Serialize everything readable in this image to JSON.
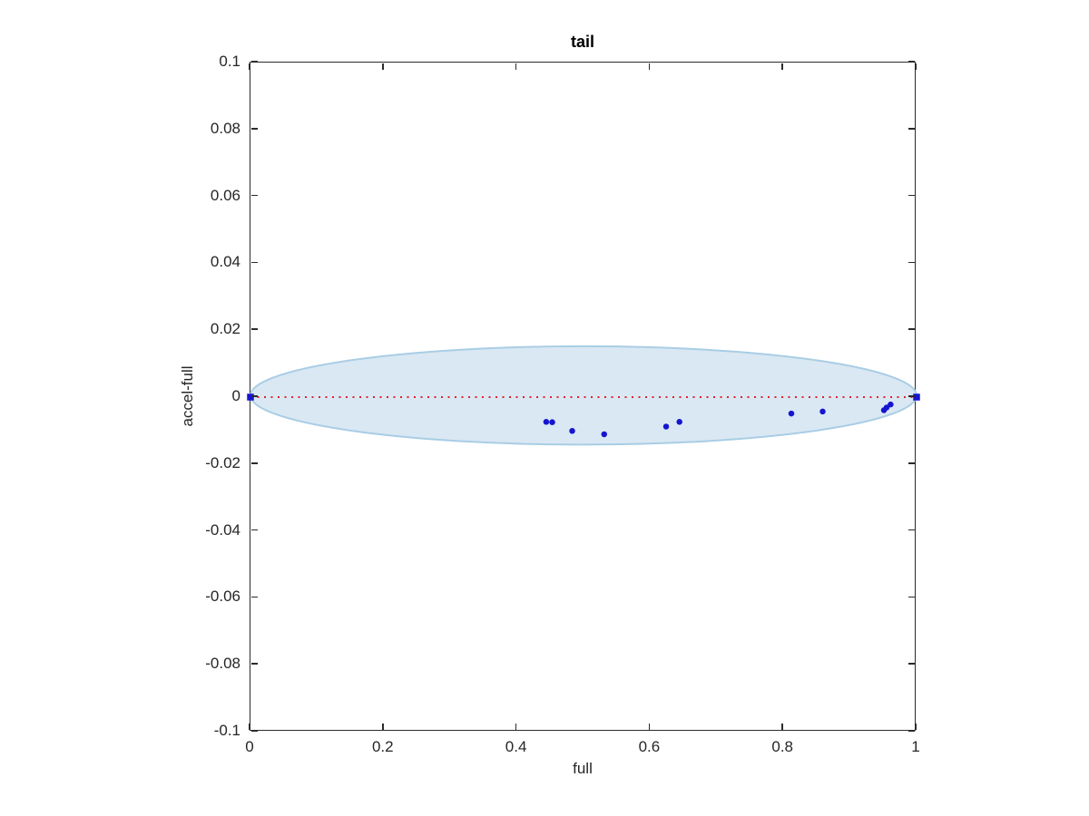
{
  "figure": {
    "title": "tail",
    "xlabel": "full",
    "ylabel": "accel-full",
    "background": "#ffffff",
    "axis_color": "#2b2b2b"
  },
  "chart_data": {
    "type": "scatter",
    "title": "tail",
    "xlabel": "full",
    "ylabel": "accel-full",
    "xlim": [
      0,
      1
    ],
    "ylim": [
      -0.1,
      0.1
    ],
    "grid": false,
    "legend": null,
    "box": true,
    "tick_direction": "in",
    "x_ticks": [
      0,
      0.2,
      0.4,
      0.6,
      0.8,
      1
    ],
    "x_tick_labels": [
      "0",
      "0.2",
      "0.4",
      "0.6",
      "0.8",
      "1"
    ],
    "y_ticks": [
      -0.1,
      -0.08,
      -0.06,
      -0.04,
      -0.02,
      0,
      0.02,
      0.04,
      0.06,
      0.08,
      0.1
    ],
    "y_tick_labels": [
      "-0.1",
      "-0.08",
      "-0.06",
      "-0.04",
      "-0.02",
      "0",
      "0.02",
      "0.04",
      "0.06",
      "0.08",
      "0.1"
    ],
    "shapes": [
      {
        "name": "confidence-ellipse",
        "type": "ellipse",
        "center": [
          0.5,
          0.0005
        ],
        "rx": 0.5,
        "ry": 0.0147,
        "fill": "#dae8f3",
        "stroke": "#a9cde5",
        "stroke_width": 2
      },
      {
        "name": "zero-reference-line",
        "type": "dotted-line",
        "y": 0,
        "x_start": 0,
        "x_end": 1,
        "color": "#e1232e",
        "dash": [
          2,
          5.5
        ],
        "width": 2
      }
    ],
    "series": [
      {
        "name": "samples",
        "marker": "circle",
        "color": "#1515d0",
        "size": 6.5,
        "points": [
          [
            0.444,
            -0.0074
          ],
          [
            0.453,
            -0.0075
          ],
          [
            0.483,
            -0.0101
          ],
          [
            0.531,
            -0.0111
          ],
          [
            0.624,
            -0.0088
          ],
          [
            0.644,
            -0.0074
          ],
          [
            0.812,
            -0.0049
          ],
          [
            0.859,
            -0.0043
          ],
          [
            0.951,
            -0.0039
          ],
          [
            0.955,
            -0.0031
          ],
          [
            0.961,
            -0.0022
          ]
        ]
      },
      {
        "name": "endpoints",
        "marker": "square",
        "color": "#1515d0",
        "size": 7.5,
        "points": [
          [
            0,
            0
          ],
          [
            1,
            0
          ]
        ]
      }
    ]
  }
}
